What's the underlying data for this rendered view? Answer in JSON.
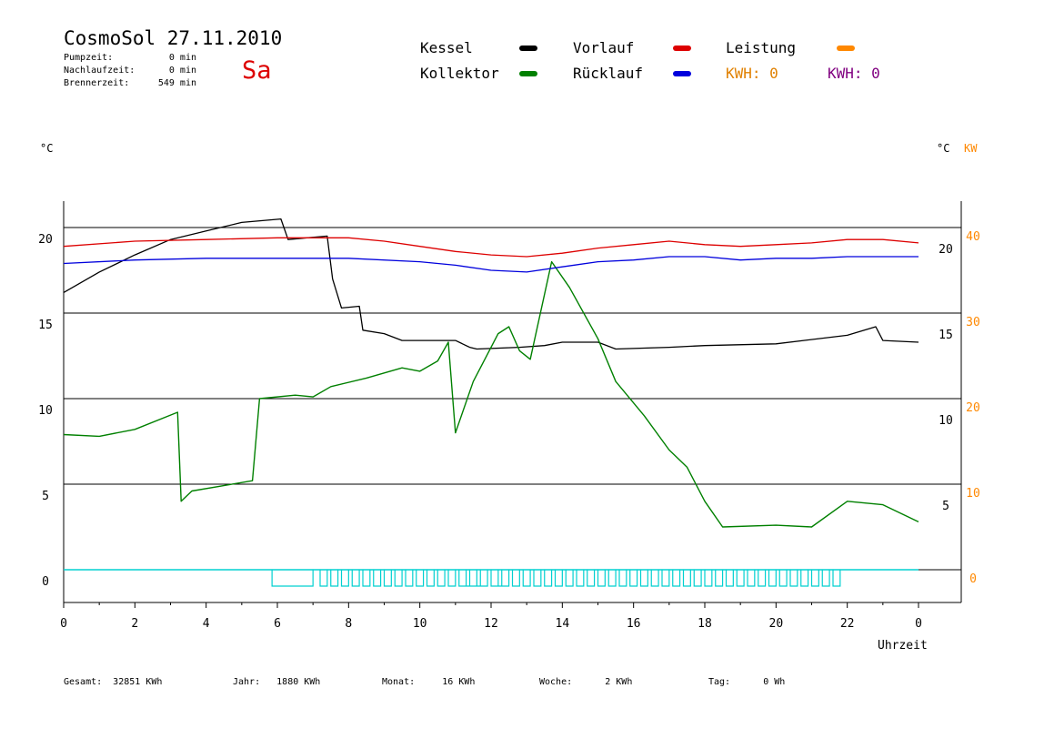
{
  "header": {
    "title": "CosmoSol 27.11.2010",
    "day": "Sa",
    "day_color": "#dd0000",
    "pumpzeit_label": "Pumpzeit:",
    "pumpzeit_value": "0 min",
    "nachlaufzeit_label": "Nachlaufzeit:",
    "nachlaufzeit_value": "0 min",
    "brennerzeit_label": "Brennerzeit:",
    "brennerzeit_value": "549 min"
  },
  "legend": {
    "kessel": "Kessel",
    "kollektor": "Kollektor",
    "vorlauf": "Vorlauf",
    "ruecklauf": "Rücklauf",
    "leistung": "Leistung",
    "kwh1": "KWH: 0",
    "kwh2": "KWH: 0",
    "colors": {
      "kessel": "#000000",
      "kollektor": "#008000",
      "vorlauf": "#dd0000",
      "ruecklauf": "#0000dd",
      "leistung": "#ff8800",
      "kwh1": "#e08000",
      "kwh2": "#800080",
      "pump": "#00d0d0"
    }
  },
  "units": {
    "left": "°C",
    "right_c": "°C",
    "right_kw": "KW"
  },
  "footer": {
    "gesamt": "Gesamt:  32851 KWh",
    "jahr": "Jahr:   1880 KWh",
    "monat": "Monat:     16 KWh",
    "woche": "Woche:      2 KWh",
    "tag": "Tag:      0 Wh"
  },
  "chart_data": {
    "type": "line",
    "xlabel": "Uhrzeit",
    "xlim": [
      0,
      24
    ],
    "x_tick_labels": [
      "0",
      "2",
      "4",
      "6",
      "8",
      "10",
      "12",
      "14",
      "16",
      "18",
      "20",
      "22",
      "0"
    ],
    "ylim": [
      -1.5,
      21.5
    ],
    "y_left_ticks": [
      "0",
      "5",
      "10",
      "15",
      "20"
    ],
    "y_right_c_ticks": [
      "5",
      "10",
      "15",
      "20"
    ],
    "y_right_kw_ticks": [
      "0",
      "10",
      "20",
      "30",
      "40"
    ],
    "grid": true,
    "series": [
      {
        "name": "Kessel",
        "key": "kessel",
        "points": [
          [
            0,
            16.2
          ],
          [
            1,
            17.4
          ],
          [
            2,
            18.4
          ],
          [
            3,
            19.3
          ],
          [
            4,
            19.8
          ],
          [
            5,
            20.3
          ],
          [
            6.1,
            20.5
          ],
          [
            6.3,
            19.3
          ],
          [
            7.4,
            19.5
          ],
          [
            7.55,
            17.0
          ],
          [
            7.8,
            15.3
          ],
          [
            8.3,
            15.4
          ],
          [
            8.4,
            14.0
          ],
          [
            9.0,
            13.8
          ],
          [
            9.5,
            13.4
          ],
          [
            11.0,
            13.4
          ],
          [
            11.4,
            13.0
          ],
          [
            11.6,
            12.9
          ],
          [
            12.8,
            13.0
          ],
          [
            13.5,
            13.1
          ],
          [
            14.0,
            13.3
          ],
          [
            15.0,
            13.3
          ],
          [
            15.5,
            12.9
          ],
          [
            17.0,
            13.0
          ],
          [
            18.0,
            13.1
          ],
          [
            20.0,
            13.2
          ],
          [
            22.0,
            13.7
          ],
          [
            22.8,
            14.2
          ],
          [
            23.0,
            13.4
          ],
          [
            24,
            13.3
          ]
        ]
      },
      {
        "name": "Kollektor",
        "key": "kollektor",
        "points": [
          [
            0,
            7.9
          ],
          [
            1.0,
            7.8
          ],
          [
            2.0,
            8.2
          ],
          [
            3.2,
            9.2
          ],
          [
            3.3,
            4.0
          ],
          [
            3.6,
            4.6
          ],
          [
            5.3,
            5.2
          ],
          [
            5.5,
            10.0
          ],
          [
            6.5,
            10.2
          ],
          [
            7.0,
            10.1
          ],
          [
            7.5,
            10.7
          ],
          [
            8.5,
            11.2
          ],
          [
            9.5,
            11.8
          ],
          [
            10.0,
            11.6
          ],
          [
            10.5,
            12.2
          ],
          [
            10.8,
            13.3
          ],
          [
            11.0,
            8.0
          ],
          [
            11.5,
            11.0
          ],
          [
            12.2,
            13.8
          ],
          [
            12.5,
            14.2
          ],
          [
            12.8,
            12.8
          ],
          [
            13.1,
            12.3
          ],
          [
            13.7,
            18.0
          ],
          [
            14.2,
            16.5
          ],
          [
            15.0,
            13.5
          ],
          [
            15.5,
            11.0
          ],
          [
            16.3,
            9.0
          ],
          [
            17.0,
            7.0
          ],
          [
            17.5,
            6.0
          ],
          [
            18.0,
            4.0
          ],
          [
            18.5,
            2.5
          ],
          [
            20.0,
            2.6
          ],
          [
            21.0,
            2.5
          ],
          [
            22.0,
            4.0
          ],
          [
            23.0,
            3.8
          ],
          [
            24,
            2.8
          ]
        ]
      },
      {
        "name": "Vorlauf",
        "key": "vorlauf",
        "points": [
          [
            0,
            18.9
          ],
          [
            2,
            19.2
          ],
          [
            4,
            19.3
          ],
          [
            6,
            19.4
          ],
          [
            8,
            19.4
          ],
          [
            9,
            19.2
          ],
          [
            10,
            18.9
          ],
          [
            11,
            18.6
          ],
          [
            12,
            18.4
          ],
          [
            13,
            18.3
          ],
          [
            14,
            18.5
          ],
          [
            15,
            18.8
          ],
          [
            16,
            19.0
          ],
          [
            17,
            19.2
          ],
          [
            18,
            19.0
          ],
          [
            19,
            18.9
          ],
          [
            20,
            19.0
          ],
          [
            21,
            19.1
          ],
          [
            22,
            19.3
          ],
          [
            23,
            19.3
          ],
          [
            24,
            19.1
          ]
        ]
      },
      {
        "name": "Rücklauf",
        "key": "ruecklauf",
        "points": [
          [
            0,
            17.9
          ],
          [
            2,
            18.1
          ],
          [
            4,
            18.2
          ],
          [
            6,
            18.2
          ],
          [
            8,
            18.2
          ],
          [
            10,
            18.0
          ],
          [
            11,
            17.8
          ],
          [
            12,
            17.5
          ],
          [
            13,
            17.4
          ],
          [
            14,
            17.7
          ],
          [
            15,
            18.0
          ],
          [
            16,
            18.1
          ],
          [
            17,
            18.3
          ],
          [
            18,
            18.3
          ],
          [
            19,
            18.1
          ],
          [
            20,
            18.2
          ],
          [
            21,
            18.2
          ],
          [
            22,
            18.3
          ],
          [
            23,
            18.3
          ],
          [
            24,
            18.3
          ]
        ]
      }
    ]
  }
}
